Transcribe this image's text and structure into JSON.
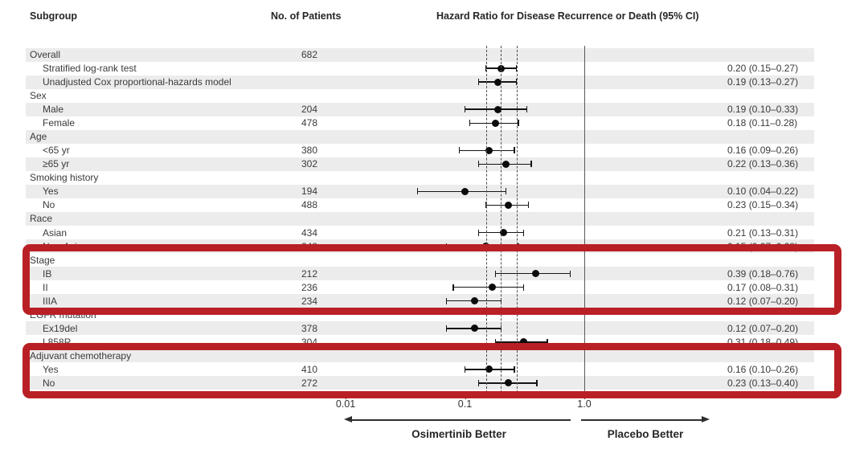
{
  "chart_data": {
    "type": "forest",
    "columns": {
      "subgroup": "Subgroup",
      "patients": "No. of Patients",
      "hazard_ratio": "Hazard Ratio for Disease Recurrence or Death (95% CI)"
    },
    "axis": {
      "scale": "log",
      "ticks": [
        0.01,
        0.1,
        1.0
      ],
      "tick_labels": [
        "0.01",
        "0.1",
        "1.0"
      ],
      "reference_line": 1.0,
      "dashed_guides": [
        0.15,
        0.2,
        0.27
      ]
    },
    "direction_labels": {
      "left": "Osimertinib Better",
      "right": "Placebo Better"
    },
    "rows": [
      {
        "label": "Overall",
        "indent": 0,
        "patients": "682"
      },
      {
        "label": "Stratified log-rank test",
        "indent": 1,
        "hr": 0.2,
        "lo": 0.15,
        "hi": 0.27,
        "ci": "0.20 (0.15–0.27)"
      },
      {
        "label": "Unadjusted Cox proportional-hazards model",
        "indent": 1,
        "hr": 0.19,
        "lo": 0.13,
        "hi": 0.27,
        "ci": "0.19 (0.13–0.27)"
      },
      {
        "label": "Sex",
        "indent": 0
      },
      {
        "label": "Male",
        "indent": 1,
        "patients": "204",
        "hr": 0.19,
        "lo": 0.1,
        "hi": 0.33,
        "ci": "0.19 (0.10–0.33)"
      },
      {
        "label": "Female",
        "indent": 1,
        "patients": "478",
        "hr": 0.18,
        "lo": 0.11,
        "hi": 0.28,
        "ci": "0.18 (0.11–0.28)"
      },
      {
        "label": "Age",
        "indent": 0
      },
      {
        "label": "<65 yr",
        "indent": 1,
        "patients": "380",
        "hr": 0.16,
        "lo": 0.09,
        "hi": 0.26,
        "ci": "0.16 (0.09–0.26)"
      },
      {
        "label": "≥65 yr",
        "indent": 1,
        "patients": "302",
        "hr": 0.22,
        "lo": 0.13,
        "hi": 0.36,
        "ci": "0.22 (0.13–0.36)"
      },
      {
        "label": "Smoking history",
        "indent": 0
      },
      {
        "label": "Yes",
        "indent": 1,
        "patients": "194",
        "hr": 0.1,
        "lo": 0.04,
        "hi": 0.22,
        "ci": "0.10 (0.04–0.22)"
      },
      {
        "label": "No",
        "indent": 1,
        "patients": "488",
        "hr": 0.23,
        "lo": 0.15,
        "hi": 0.34,
        "ci": "0.23 (0.15–0.34)"
      },
      {
        "label": "Race",
        "indent": 0
      },
      {
        "label": "Asian",
        "indent": 1,
        "patients": "434",
        "hr": 0.21,
        "lo": 0.13,
        "hi": 0.31,
        "ci": "0.21 (0.13–0.31)"
      },
      {
        "label": "Non-Asian",
        "indent": 1,
        "patients": "248",
        "hr": 0.15,
        "lo": 0.07,
        "hi": 0.28,
        "ci": "0.15 (0.07–0.28)"
      },
      {
        "label": "Stage",
        "indent": 0
      },
      {
        "label": "IB",
        "indent": 1,
        "patients": "212",
        "hr": 0.39,
        "lo": 0.18,
        "hi": 0.76,
        "ci": "0.39 (0.18–0.76)"
      },
      {
        "label": "II",
        "indent": 1,
        "patients": "236",
        "hr": 0.17,
        "lo": 0.08,
        "hi": 0.31,
        "ci": "0.17 (0.08–0.31)"
      },
      {
        "label": "IIIA",
        "indent": 1,
        "patients": "234",
        "hr": 0.12,
        "lo": 0.07,
        "hi": 0.2,
        "ci": "0.12 (0.07–0.20)"
      },
      {
        "label": "EGFR mutation",
        "indent": 0
      },
      {
        "label": "Ex19del",
        "indent": 1,
        "patients": "378",
        "hr": 0.12,
        "lo": 0.07,
        "hi": 0.2,
        "ci": "0.12 (0.07–0.20)"
      },
      {
        "label": "L858R",
        "indent": 1,
        "patients": "304",
        "hr": 0.31,
        "lo": 0.18,
        "hi": 0.49,
        "ci": "0.31 (0.18–0.49)"
      },
      {
        "label": "Adjuvant chemotherapy",
        "indent": 0
      },
      {
        "label": "Yes",
        "indent": 1,
        "patients": "410",
        "hr": 0.16,
        "lo": 0.1,
        "hi": 0.26,
        "ci": "0.16 (0.10–0.26)"
      },
      {
        "label": "No",
        "indent": 1,
        "patients": "272",
        "hr": 0.23,
        "lo": 0.13,
        "hi": 0.4,
        "ci": "0.23 (0.13–0.40)"
      }
    ],
    "highlights": [
      {
        "name": "stage-section",
        "covers": [
          "Stage",
          "IB",
          "II",
          "IIIA"
        ]
      },
      {
        "name": "adjuvant-chemotherapy-section",
        "covers": [
          "Adjuvant chemotherapy",
          "Yes",
          "No"
        ]
      }
    ]
  },
  "colors": {
    "highlight_red": "#b92025",
    "stripe_gray": "#ececec"
  }
}
